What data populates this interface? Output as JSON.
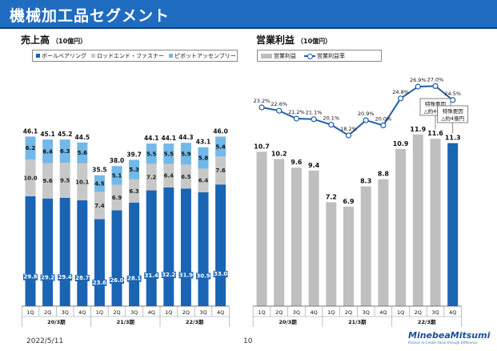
{
  "header": {
    "title": "機械加工品セグメント"
  },
  "footer": {
    "date": "2022/5/11",
    "page": "10"
  },
  "logo": {
    "name": "MinebeaMitsumi",
    "tagline": "Passion to Create Value through Difference"
  },
  "colors": {
    "ball": "#1a64b4",
    "rod": "#c8c8c8",
    "pivot": "#72b8e8",
    "profit": "#bfbfbf",
    "profit_hl": "#1a64b4",
    "rate": "#1f5ea8"
  },
  "chart_data": [
    {
      "type": "bar",
      "stacked": true,
      "title": "売上高",
      "unit": "（10億円）",
      "categories": [
        "1Q",
        "2Q",
        "3Q",
        "4Q",
        "1Q",
        "2Q",
        "3Q",
        "4Q",
        "1Q",
        "2Q",
        "3Q",
        "4Q"
      ],
      "groups": [
        {
          "label": "20/3期"
        },
        {
          "label": "21/3期"
        },
        {
          "label": "22/3期"
        }
      ],
      "series": [
        {
          "name": "ボールベアリング",
          "values": [
            29.8,
            29.2,
            29.4,
            28.7,
            23.6,
            26.0,
            28.1,
            31.4,
            32.2,
            31.9,
            30.9,
            33.0
          ]
        },
        {
          "name": "ロッドエンド・ファスナー",
          "values": [
            10.0,
            9.6,
            9.5,
            10.1,
            7.4,
            6.9,
            6.3,
            7.2,
            6.4,
            6.5,
            6.4,
            7.6
          ]
        },
        {
          "name": "ピボットアッセンブリー",
          "values": [
            6.2,
            6.4,
            6.3,
            5.6,
            4.5,
            5.1,
            5.3,
            5.5,
            5.5,
            5.9,
            5.8,
            5.4
          ]
        }
      ],
      "totals": [
        46.1,
        45.1,
        45.2,
        44.5,
        35.5,
        38.0,
        39.7,
        44.1,
        44.1,
        44.3,
        43.1,
        46.0
      ],
      "total_labels": [
        "46.1",
        "45.1",
        "45.2",
        "44.5",
        "35.5",
        "38.0",
        "39.7",
        "44.1",
        "44.1",
        "44.3",
        "43.1",
        "46.0"
      ],
      "series_labels": [
        [
          "29.8",
          "29.2",
          "29.4",
          "28.7",
          "23.6",
          "26.0",
          "28.1",
          "31.4",
          "32.2",
          "31.9",
          "30.9",
          "33.0"
        ],
        [
          "10.0",
          "9.6",
          "9.5",
          "10.1",
          "7.4",
          "6.9",
          "6.3",
          "7.2",
          "6.4",
          "6.5",
          "6.4",
          "7.6"
        ],
        [
          "6.2",
          "6.4",
          "6.3",
          "5.6",
          "4.5",
          "5.1",
          "5.3",
          "5.5",
          "5.5",
          "5.9",
          "5.8",
          "5.4"
        ]
      ],
      "ylim": [
        0,
        50
      ]
    },
    {
      "type": "bar+line",
      "title": "営業利益",
      "unit": "（10億円）",
      "categories": [
        "1Q",
        "2Q",
        "3Q",
        "4Q",
        "1Q",
        "2Q",
        "3Q",
        "4Q",
        "1Q",
        "2Q",
        "3Q",
        "4Q"
      ],
      "groups": [
        {
          "label": "20/3期"
        },
        {
          "label": "21/3期"
        },
        {
          "label": "22/3期"
        }
      ],
      "series": [
        {
          "name": "営業利益",
          "values": [
            10.7,
            10.2,
            9.6,
            9.4,
            7.2,
            6.9,
            8.3,
            8.8,
            10.9,
            11.9,
            11.6,
            11.3
          ]
        },
        {
          "name": "営業利益率",
          "values": [
            23.2,
            22.6,
            21.2,
            21.1,
            20.1,
            18.2,
            20.9,
            20.0,
            24.8,
            26.9,
            27.0,
            24.5
          ]
        }
      ],
      "bar_labels": [
        "10.7",
        "10.2",
        "9.6",
        "9.4",
        "7.2",
        "6.9",
        "8.3",
        "8.8",
        "10.9",
        "11.9",
        "11.6",
        "11.3"
      ],
      "rate_labels": [
        "23.2%",
        "22.6%",
        "21.2%",
        "21.1%",
        "20.1%",
        "18.2%",
        "20.9%",
        "20.0%",
        "24.8%",
        "26.9%",
        "27.0%",
        "24.5%"
      ],
      "highlight_index": 11,
      "annotations": [
        {
          "index": 10,
          "line1": "特殊要因",
          "line2": "△約4億円"
        },
        {
          "index": 11,
          "line1": "特殊要因",
          "line2": "△約4億円"
        }
      ],
      "ylim": [
        0,
        15
      ]
    }
  ]
}
